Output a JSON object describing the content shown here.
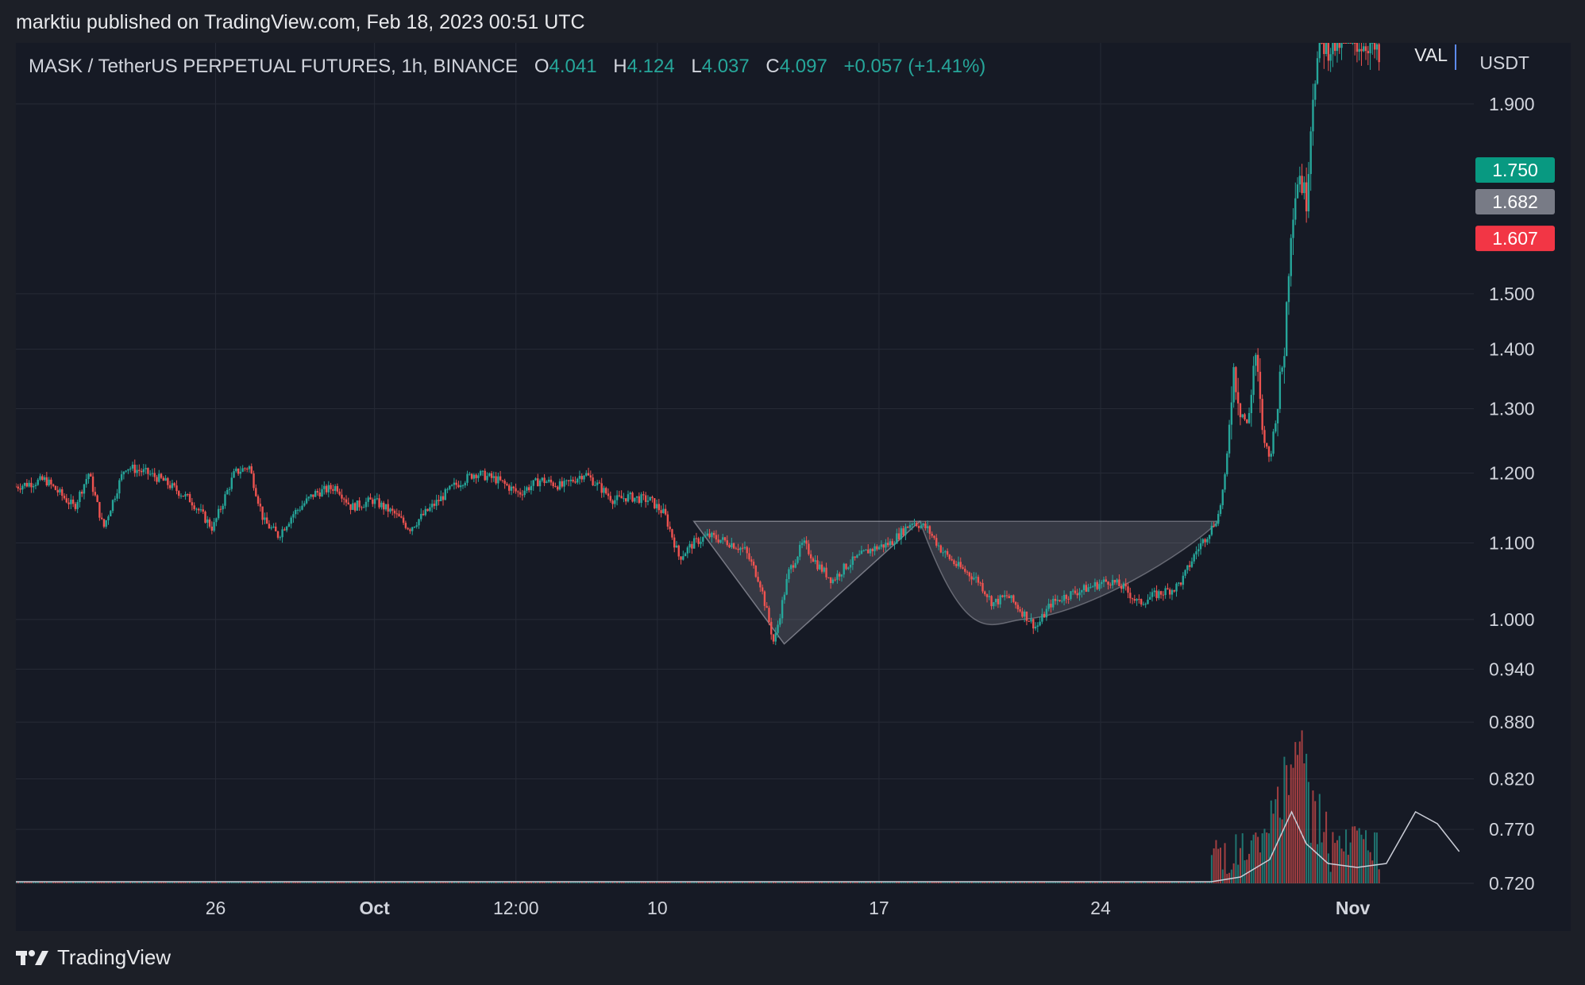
{
  "header": {
    "published": "marktiu published on TradingView.com, Feb 18, 2023 00:51 UTC"
  },
  "legend": {
    "symbol": "MASK / TetherUS PERPETUAL FUTURES, 1h, BINANCE",
    "o_label": "O",
    "o_value": "4.041",
    "h_label": "H",
    "h_value": "4.124",
    "l_label": "L",
    "l_value": "4.037",
    "c_label": "C",
    "c_value": "4.097",
    "change": "+0.057 (+1.41%)"
  },
  "val_label": "VAL",
  "unit_label": "USDT",
  "footer": {
    "brand": "TradingView",
    "logo_icon": "tradingview-logo-icon"
  },
  "colors": {
    "up": "#26a69a",
    "down": "#ef5350",
    "background": "#161a25",
    "grid": "#262a36",
    "pattern": "rgba(200,200,210,0.18)",
    "axis_text": "#d1d4dc"
  },
  "chart_data": {
    "type": "candlestick",
    "y_scale": "log",
    "ylim": [
      0.72,
      2.05
    ],
    "y_ticks": [
      "1.900",
      "1.500",
      "1.400",
      "1.300",
      "1.200",
      "1.100",
      "1.000",
      "0.940",
      "0.880",
      "0.820",
      "0.770",
      "0.720"
    ],
    "x_ticks": [
      "26",
      "Oct",
      "12:00",
      "10",
      "17",
      "24",
      "Nov"
    ],
    "price_labels": [
      {
        "value": 1.75,
        "text": "1.750",
        "color": "#089981"
      },
      {
        "value": 1.682,
        "text": "1.682",
        "color": "#787b86"
      },
      {
        "value": 1.607,
        "text": "1.607",
        "color": "#f23645"
      }
    ],
    "price_path": [
      [
        0.0,
        1.18
      ],
      [
        0.02,
        1.19
      ],
      [
        0.04,
        1.15
      ],
      [
        0.05,
        1.2
      ],
      [
        0.06,
        1.12
      ],
      [
        0.075,
        1.21
      ],
      [
        0.09,
        1.2
      ],
      [
        0.1,
        1.19
      ],
      [
        0.12,
        1.16
      ],
      [
        0.135,
        1.12
      ],
      [
        0.15,
        1.2
      ],
      [
        0.16,
        1.21
      ],
      [
        0.17,
        1.13
      ],
      [
        0.18,
        1.11
      ],
      [
        0.19,
        1.14
      ],
      [
        0.205,
        1.17
      ],
      [
        0.22,
        1.18
      ],
      [
        0.23,
        1.15
      ],
      [
        0.245,
        1.16
      ],
      [
        0.26,
        1.14
      ],
      [
        0.27,
        1.12
      ],
      [
        0.285,
        1.15
      ],
      [
        0.3,
        1.18
      ],
      [
        0.315,
        1.2
      ],
      [
        0.33,
        1.19
      ],
      [
        0.345,
        1.17
      ],
      [
        0.36,
        1.19
      ],
      [
        0.375,
        1.18
      ],
      [
        0.39,
        1.2
      ],
      [
        0.4,
        1.18
      ],
      [
        0.41,
        1.16
      ],
      [
        0.42,
        1.165
      ],
      [
        0.435,
        1.16
      ],
      [
        0.445,
        1.14
      ],
      [
        0.455,
        1.08
      ],
      [
        0.465,
        1.1
      ],
      [
        0.475,
        1.11
      ],
      [
        0.49,
        1.1
      ],
      [
        0.5,
        1.09
      ],
      [
        0.51,
        1.05
      ],
      [
        0.52,
        0.97
      ],
      [
        0.53,
        1.06
      ],
      [
        0.54,
        1.1
      ],
      [
        0.55,
        1.07
      ],
      [
        0.56,
        1.05
      ],
      [
        0.57,
        1.07
      ],
      [
        0.585,
        1.09
      ],
      [
        0.6,
        1.1
      ],
      [
        0.615,
        1.13
      ],
      [
        0.625,
        1.12
      ],
      [
        0.635,
        1.09
      ],
      [
        0.645,
        1.07
      ],
      [
        0.66,
        1.05
      ],
      [
        0.67,
        1.02
      ],
      [
        0.68,
        1.03
      ],
      [
        0.69,
        1.01
      ],
      [
        0.7,
        0.99
      ],
      [
        0.71,
        1.02
      ],
      [
        0.72,
        1.03
      ],
      [
        0.735,
        1.04
      ],
      [
        0.75,
        1.05
      ],
      [
        0.76,
        1.04
      ],
      [
        0.77,
        1.02
      ],
      [
        0.78,
        1.03
      ],
      [
        0.795,
        1.04
      ],
      [
        0.8,
        1.05
      ],
      [
        0.81,
        1.09
      ],
      [
        0.82,
        1.12
      ],
      [
        0.825,
        1.14
      ],
      [
        0.83,
        1.2
      ],
      [
        0.835,
        1.37
      ],
      [
        0.84,
        1.3
      ],
      [
        0.845,
        1.27
      ],
      [
        0.85,
        1.4
      ],
      [
        0.855,
        1.26
      ],
      [
        0.86,
        1.22
      ],
      [
        0.865,
        1.3
      ],
      [
        0.87,
        1.4
      ],
      [
        0.875,
        1.65
      ],
      [
        0.88,
        1.75
      ],
      [
        0.885,
        1.68
      ],
      [
        0.89,
        1.95
      ],
      [
        0.895,
        2.05
      ],
      [
        0.9,
        2.04
      ],
      [
        0.91,
        2.05
      ],
      [
        0.93,
        2.05
      ],
      [
        0.935,
        2.0
      ]
    ],
    "pattern_triangle": [
      [
        0.465,
        1.13
      ],
      [
        0.527,
        0.97
      ],
      [
        0.62,
        1.13
      ]
    ],
    "pattern_cup": [
      [
        0.62,
        1.13
      ],
      [
        0.69,
        1.0
      ],
      [
        0.825,
        1.13
      ]
    ],
    "volume_spikes": [
      [
        0.88,
        0.6
      ],
      [
        0.875,
        0.5
      ],
      [
        0.86,
        0.3
      ],
      [
        0.92,
        0.3
      ],
      [
        0.96,
        0.7
      ],
      [
        0.97,
        0.45
      ],
      [
        0.98,
        0.35
      ]
    ]
  }
}
